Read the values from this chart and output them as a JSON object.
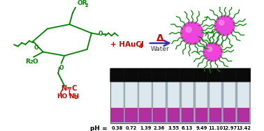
{
  "bg_color": "#ffffff",
  "structure_color": "#008000",
  "reagent_color": "#cc0000",
  "arrow_color": "#3333aa",
  "nanoparticle_color": "#ee44dd",
  "vial_photo_bg": "#b0c4d4",
  "vial_liquid_color": "#b030a0",
  "vial_cap_color": "#111111",
  "ph_label": "pH =",
  "ph_values": [
    "0.38",
    "0.72",
    "1.39",
    "2.36",
    "3.55",
    "6.13",
    "9.49",
    "11.10",
    "12.97",
    "13.42"
  ],
  "delta_label": "Δ",
  "water_label": "Water",
  "reagent_label": "+ HAuCl",
  "reagent_sub": "4",
  "r2o_label": "OR",
  "r2o_sub": "2",
  "r2o2_label": "R",
  "r2o2_sub": "2",
  "r2o2_suffix": "O"
}
